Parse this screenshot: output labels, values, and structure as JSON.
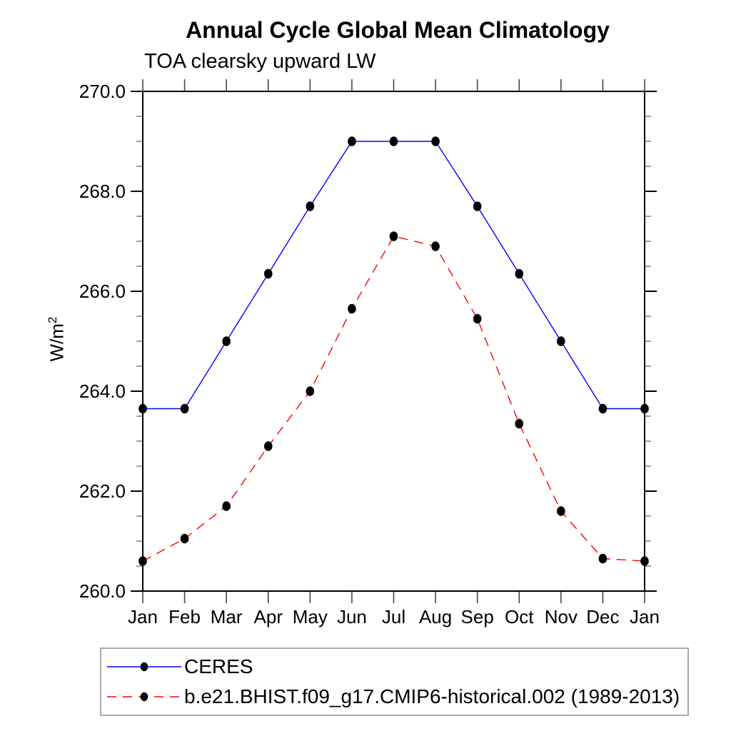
{
  "chart_data": {
    "type": "line",
    "title": "Annual Cycle Global Mean Climatology",
    "subtitle": "TOA clearsky upward LW",
    "ylabel": "W/m",
    "ylabel_superscript": "2",
    "categories": [
      "Jan",
      "Feb",
      "Mar",
      "Apr",
      "May",
      "Jun",
      "Jul",
      "Aug",
      "Sep",
      "Oct",
      "Nov",
      "Dec",
      "Jan"
    ],
    "ylim": [
      260.0,
      270.0
    ],
    "ytick_major_interval": 2.0,
    "ytick_minor_interval": 0.5,
    "ytick_labels": [
      "270.0",
      "268.0",
      "266.0",
      "264.0",
      "262.0",
      "260.0"
    ],
    "grid": false,
    "legend_position": "bottom",
    "marker_color": "#000000",
    "series": [
      {
        "name": "CERES",
        "color": "#0000ff",
        "line_style": "solid",
        "marker": "filled-circle",
        "values": [
          263.65,
          263.65,
          265.0,
          266.35,
          267.7,
          269.0,
          269.0,
          269.0,
          267.7,
          266.35,
          265.0,
          263.65,
          263.65
        ]
      },
      {
        "name": "b.e21.BHIST.f09_g17.CMIP6-historical.002 (1989-2013)",
        "color": "#ff0000",
        "line_style": "dashed",
        "marker": "filled-circle",
        "values": [
          260.6,
          261.05,
          261.7,
          262.9,
          264.0,
          265.65,
          267.1,
          266.9,
          265.45,
          263.35,
          261.6,
          260.65,
          260.6
        ]
      }
    ]
  }
}
